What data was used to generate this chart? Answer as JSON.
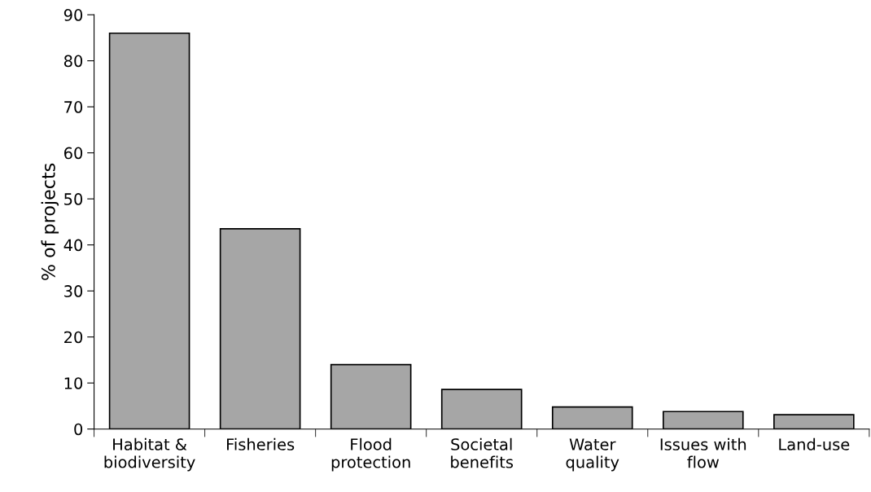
{
  "chart_data": {
    "type": "bar",
    "categories": [
      "Habitat &\nbiodiversity",
      "Fisheries",
      "Flood\nprotection",
      "Societal\nbenefits",
      "Water\nquality",
      "Issues with\nflow",
      "Land-use"
    ],
    "values": [
      86,
      43.5,
      14,
      8.6,
      4.8,
      3.8,
      3.1
    ],
    "color": "#a6a6a6",
    "ylabel": "% of projects",
    "ylim": [
      0,
      90
    ],
    "yticks": [
      0,
      10,
      20,
      30,
      40,
      50,
      60,
      70,
      80,
      90
    ],
    "grid": false
  }
}
